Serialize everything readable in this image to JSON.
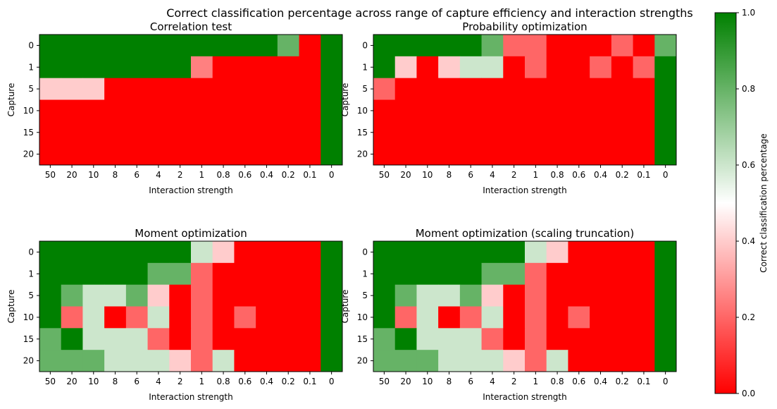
{
  "suptitle": "Correct classification percentage across range of capture efficiency and interaction strengths",
  "colorbar": {
    "label": "Correct classification percentage",
    "ticks": [
      "0.0",
      "0.2",
      "0.4",
      "0.6",
      "0.8",
      "1.0"
    ],
    "range": [
      0.0,
      1.0
    ],
    "colors": {
      "low": "#ff0000",
      "mid": "#ffffff",
      "high": "#008000"
    }
  },
  "chart_data": [
    {
      "type": "heatmap",
      "title": "Correlation test",
      "xlabel": "Interaction strength",
      "ylabel": "Capture",
      "x": [
        "50",
        "20",
        "10",
        "8",
        "6",
        "4",
        "2",
        "1",
        "0.8",
        "0.6",
        "0.4",
        "0.2",
        "0.1",
        "0"
      ],
      "y": [
        "0",
        "1",
        "5",
        "10",
        "15",
        "20"
      ],
      "values": [
        [
          1,
          1,
          1,
          1,
          1,
          1,
          1,
          1,
          1,
          1,
          1,
          0.8,
          0,
          1
        ],
        [
          1,
          1,
          1,
          1,
          1,
          1,
          1,
          0.25,
          0,
          0,
          0,
          0,
          0,
          1
        ],
        [
          0.4,
          0.4,
          0.4,
          0,
          0,
          0,
          0,
          0,
          0,
          0,
          0,
          0,
          0,
          1
        ],
        [
          0,
          0,
          0,
          0,
          0,
          0,
          0,
          0,
          0,
          0,
          0,
          0,
          0,
          1
        ],
        [
          0,
          0,
          0,
          0,
          0,
          0,
          0,
          0,
          0,
          0,
          0,
          0,
          0,
          1
        ],
        [
          0,
          0,
          0,
          0,
          0,
          0,
          0,
          0,
          0,
          0,
          0,
          0,
          0,
          1
        ]
      ]
    },
    {
      "type": "heatmap",
      "title": "Probability optimization",
      "xlabel": "Interaction strength",
      "ylabel": "Capture",
      "x": [
        "50",
        "20",
        "10",
        "8",
        "6",
        "4",
        "2",
        "1",
        "0.8",
        "0.6",
        "0.4",
        "0.2",
        "0.1",
        "0"
      ],
      "y": [
        "0",
        "1",
        "5",
        "10",
        "15",
        "20"
      ],
      "values": [
        [
          1,
          1,
          1,
          1,
          1,
          0.8,
          0.2,
          0.2,
          0,
          0,
          0,
          0.2,
          0,
          0.8
        ],
        [
          1,
          0.4,
          0,
          0.4,
          0.6,
          0.6,
          0,
          0.2,
          0,
          0,
          0.2,
          0,
          0.2,
          1
        ],
        [
          0.2,
          0,
          0,
          0,
          0,
          0,
          0,
          0,
          0,
          0,
          0,
          0,
          0,
          1
        ],
        [
          0,
          0,
          0,
          0,
          0,
          0,
          0,
          0,
          0,
          0,
          0,
          0,
          0,
          1
        ],
        [
          0,
          0,
          0,
          0,
          0,
          0,
          0,
          0,
          0,
          0,
          0,
          0,
          0,
          1
        ],
        [
          0,
          0,
          0,
          0,
          0,
          0,
          0,
          0,
          0,
          0,
          0,
          0,
          0,
          1
        ]
      ]
    },
    {
      "type": "heatmap",
      "title": "Moment optimization",
      "xlabel": "Interaction strength",
      "ylabel": "Capture",
      "x": [
        "50",
        "20",
        "10",
        "8",
        "6",
        "4",
        "2",
        "1",
        "0.8",
        "0.6",
        "0.4",
        "0.2",
        "0.1",
        "0"
      ],
      "y": [
        "0",
        "1",
        "5",
        "10",
        "15",
        "20"
      ],
      "values": [
        [
          1,
          1,
          1,
          1,
          1,
          1,
          1,
          0.6,
          0.4,
          0,
          0,
          0,
          0,
          1
        ],
        [
          1,
          1,
          1,
          1,
          1,
          0.8,
          0.8,
          0.2,
          0,
          0,
          0,
          0,
          0,
          1
        ],
        [
          1,
          0.8,
          0.6,
          0.6,
          0.8,
          0.4,
          0,
          0.2,
          0,
          0,
          0,
          0,
          0,
          1
        ],
        [
          1,
          0.2,
          0.6,
          0,
          0.2,
          0.6,
          0,
          0.2,
          0,
          0.2,
          0,
          0,
          0,
          1
        ],
        [
          0.8,
          1,
          0.6,
          0.6,
          0.6,
          0.2,
          0,
          0.2,
          0,
          0,
          0,
          0,
          0,
          1
        ],
        [
          0.8,
          0.8,
          0.8,
          0.6,
          0.6,
          0.6,
          0.4,
          0.2,
          0.6,
          0,
          0,
          0,
          0,
          1
        ]
      ]
    },
    {
      "type": "heatmap",
      "title": "Moment optimization (scaling truncation)",
      "xlabel": "Interaction strength",
      "ylabel": "Capture",
      "x": [
        "50",
        "20",
        "10",
        "8",
        "6",
        "4",
        "2",
        "1",
        "0.8",
        "0.6",
        "0.4",
        "0.2",
        "0.1",
        "0"
      ],
      "y": [
        "0",
        "1",
        "5",
        "10",
        "15",
        "20"
      ],
      "values": [
        [
          1,
          1,
          1,
          1,
          1,
          1,
          1,
          0.6,
          0.4,
          0,
          0,
          0,
          0,
          1
        ],
        [
          1,
          1,
          1,
          1,
          1,
          0.8,
          0.8,
          0.2,
          0,
          0,
          0,
          0,
          0,
          1
        ],
        [
          1,
          0.8,
          0.6,
          0.6,
          0.8,
          0.4,
          0,
          0.2,
          0,
          0,
          0,
          0,
          0,
          1
        ],
        [
          1,
          0.2,
          0.6,
          0,
          0.2,
          0.6,
          0,
          0.2,
          0,
          0.2,
          0,
          0,
          0,
          1
        ],
        [
          0.8,
          1,
          0.6,
          0.6,
          0.6,
          0.2,
          0,
          0.2,
          0,
          0,
          0,
          0,
          0,
          1
        ],
        [
          0.8,
          0.8,
          0.8,
          0.6,
          0.6,
          0.6,
          0.4,
          0.2,
          0.6,
          0,
          0,
          0,
          0,
          1
        ]
      ]
    }
  ]
}
